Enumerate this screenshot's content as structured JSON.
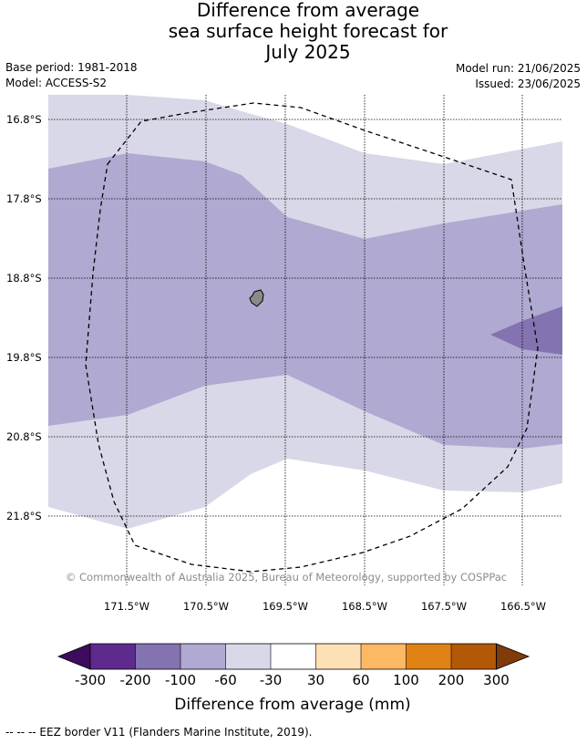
{
  "title": {
    "line1": "Difference from average",
    "line2": "sea surface height forecast for",
    "line3": "July 2025"
  },
  "meta": {
    "base_period": "Base period: 1981-2018",
    "model": "Model: ACCESS-S2",
    "model_run": "Model run: 21/06/2025",
    "issued": "Issued: 23/06/2025"
  },
  "map": {
    "lat_labels": [
      "16.8°S",
      "17.8°S",
      "18.8°S",
      "19.8°S",
      "20.8°S",
      "21.8°S"
    ],
    "lon_labels": [
      "171.5°W",
      "170.5°W",
      "169.5°W",
      "168.5°W",
      "167.5°W",
      "166.5°W"
    ],
    "copyright": "© Commonwealth of Australia 2025, Bureau of Meteorology, supported by COSPPac",
    "colors": {
      "band_neg60_neg30": "#d8d8e8",
      "band_neg100_neg60": "#b0a9d1",
      "band_neg200_neg100": "#8373b0",
      "land": "#8a8a8a"
    }
  },
  "colorbar": {
    "ticks": [
      "-300",
      "-200",
      "-100",
      "-60",
      "-30",
      "30",
      "60",
      "100",
      "200",
      "300"
    ],
    "colors": [
      "#3d0c5e",
      "#5e2a8e",
      "#8373b0",
      "#b0a9d1",
      "#d8d8e8",
      "#ffffff",
      "#fee0b6",
      "#fdb863",
      "#e08214",
      "#b35806",
      "#7f3b08"
    ],
    "label": "Difference from average (mm)"
  },
  "footer": {
    "text": "--  --  -- EEZ border V11 (Flanders Marine Institute, 2019)."
  }
}
